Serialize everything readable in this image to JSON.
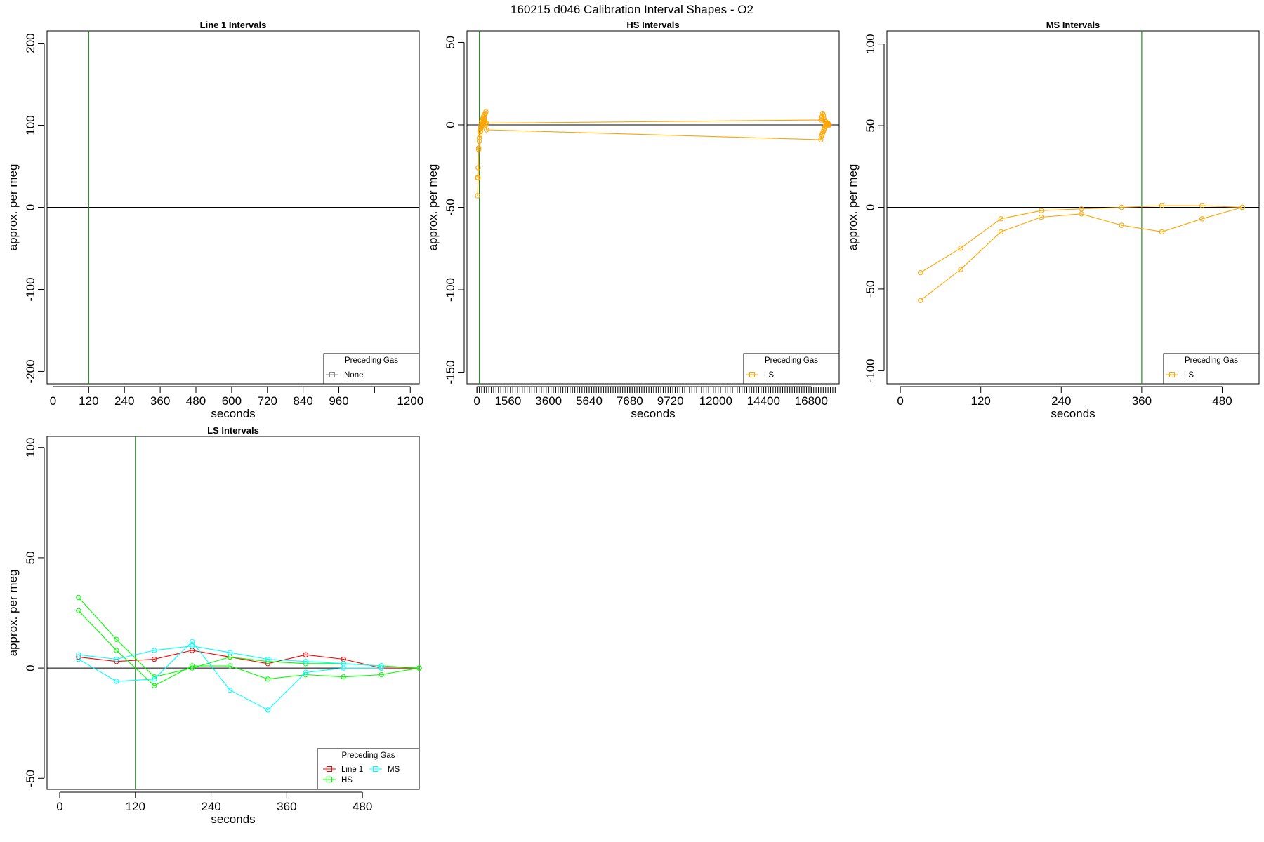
{
  "figure": {
    "title": "160215   d046   Calibration Interval Shapes - O2"
  },
  "colors": {
    "ref_line": "#228B22",
    "zero_line": "#000000"
  },
  "chart_data": [
    {
      "type": "line",
      "title": "Line 1 Intervals",
      "xlabel": "seconds",
      "ylabel": "approx. per meg",
      "xlim": [
        -20,
        1230
      ],
      "ylim": [
        -215,
        215
      ],
      "xticks": [
        0,
        120,
        240,
        360,
        480,
        600,
        720,
        840,
        960,
        1200
      ],
      "xtick_labels": [
        "0",
        "120",
        "240",
        "360",
        "480",
        "600",
        "720",
        "840",
        "960",
        "1200"
      ],
      "yticks": [
        -200,
        -100,
        0,
        100,
        200
      ],
      "ytick_labels": [
        "-200",
        "-100",
        "0",
        "100",
        "200"
      ],
      "extra_xticks": [
        1080
      ],
      "ref_vline": 120,
      "zero_hline": 0,
      "legend": {
        "title": "Preceding Gas",
        "position": "bottom-right",
        "entries": [
          {
            "label": "None",
            "color": "#888888"
          }
        ]
      },
      "series": []
    },
    {
      "type": "line",
      "title": "HS Intervals",
      "xlabel": "seconds",
      "ylabel": "approx. per meg",
      "xlim": [
        -500,
        18200
      ],
      "ylim": [
        -157,
        57
      ],
      "xticks": [
        0,
        1560,
        3600,
        5640,
        7680,
        9720,
        12000,
        14400,
        16800
      ],
      "xtick_labels": [
        "0",
        "1560",
        "3600",
        "5640",
        "7680",
        "9720",
        "12000",
        "14400",
        "16800"
      ],
      "yticks": [
        -150,
        -100,
        -50,
        0,
        50
      ],
      "ytick_labels": [
        "-150",
        "-100",
        "-50",
        "0",
        "50"
      ],
      "minor_xtick_step": 120,
      "minor_xtick_range": [
        0,
        18000
      ],
      "ref_vline": 120,
      "zero_hline": 0,
      "legend": {
        "title": "Preceding Gas",
        "position": "bottom-right",
        "entries": [
          {
            "label": "LS",
            "color": "#FFA500"
          }
        ]
      },
      "series": [
        {
          "color": "#FFA500",
          "x": [
            30,
            60,
            90,
            120,
            150,
            180,
            210,
            240,
            270,
            300,
            330,
            360,
            390,
            420,
            450,
            480,
            17280,
            17310,
            17340,
            17370,
            17400,
            17430,
            17460,
            17490,
            17520,
            17550,
            17580,
            17610,
            17640,
            17670,
            17700
          ],
          "y": [
            -43,
            -32,
            -14,
            -8,
            -4,
            -2,
            0,
            2,
            3,
            4,
            5,
            6,
            6,
            7,
            8,
            1,
            3,
            4,
            5,
            7,
            6,
            4,
            3,
            2,
            2,
            1,
            1,
            1,
            1,
            0,
            0
          ]
        },
        {
          "color": "#FFA500",
          "x": [
            30,
            60,
            90,
            120,
            150,
            180,
            210,
            240,
            270,
            300,
            330,
            360,
            390,
            420,
            450,
            480,
            17280,
            17310,
            17340,
            17370,
            17400,
            17430,
            17460,
            17490,
            17520,
            17550,
            17580,
            17610,
            17640,
            17670,
            17700
          ],
          "y": [
            -32,
            -26,
            -15,
            -10,
            -6,
            -4,
            -2,
            -1,
            0,
            1,
            2,
            3,
            2,
            1,
            0,
            -3,
            -9,
            -7,
            -6,
            -5,
            -4,
            -3,
            -2,
            -1,
            -1,
            0,
            0,
            1,
            0,
            0,
            0
          ]
        }
      ]
    },
    {
      "type": "line",
      "title": "MS Intervals",
      "xlabel": "seconds",
      "ylabel": "approx. per meg",
      "xlim": [
        -20,
        535
      ],
      "ylim": [
        -108,
        108
      ],
      "xticks": [
        0,
        120,
        240,
        360,
        480
      ],
      "xtick_labels": [
        "0",
        "120",
        "240",
        "360",
        "480"
      ],
      "yticks": [
        -100,
        -50,
        0,
        50,
        100
      ],
      "ytick_labels": [
        "-100",
        "-50",
        "0",
        "50",
        "100"
      ],
      "ref_vline": 360,
      "zero_hline": 0,
      "legend": {
        "title": "Preceding Gas",
        "position": "bottom-right",
        "entries": [
          {
            "label": "LS",
            "color": "#FFA500"
          }
        ]
      },
      "series": [
        {
          "color": "#FFA500",
          "x": [
            30,
            90,
            150,
            210,
            270,
            330,
            390,
            450,
            510
          ],
          "y": [
            -40,
            -25,
            -7,
            -2,
            -1,
            0,
            1,
            1,
            0
          ]
        },
        {
          "color": "#FFA500",
          "x": [
            30,
            90,
            150,
            210,
            270,
            330,
            390,
            450,
            510
          ],
          "y": [
            -57,
            -38,
            -15,
            -6,
            -4,
            -11,
            -15,
            -7,
            0
          ]
        }
      ]
    },
    {
      "type": "line",
      "title": "LS Intervals",
      "xlabel": "seconds",
      "ylabel": "approx. per meg",
      "xlim": [
        -20,
        570
      ],
      "ylim": [
        -55,
        105
      ],
      "xticks": [
        0,
        120,
        240,
        360,
        480
      ],
      "xtick_labels": [
        "0",
        "120",
        "240",
        "360",
        "480"
      ],
      "yticks": [
        -50,
        0,
        50,
        100
      ],
      "ytick_labels": [
        "-50",
        "0",
        "50",
        "100"
      ],
      "ref_vline": 120,
      "zero_hline": 0,
      "legend": {
        "title": "Preceding Gas",
        "position": "bottom-right",
        "entries": [
          {
            "label": "Line 1",
            "color": "#FF0000"
          },
          {
            "label": "MS",
            "color": "#00FFFF"
          },
          {
            "label": "HS",
            "color": "#00FF00"
          }
        ]
      },
      "series": [
        {
          "name": "Line 1",
          "color": "#FF0000",
          "x": [
            30,
            90,
            150,
            210,
            270,
            330,
            390,
            450,
            510,
            570
          ],
          "y": [
            5,
            3,
            4,
            8,
            5,
            2,
            6,
            4,
            0,
            0
          ]
        },
        {
          "name": "HS",
          "color": "#00FF00",
          "x": [
            30,
            90,
            150,
            210,
            270,
            330,
            390,
            450,
            510,
            570
          ],
          "y": [
            32,
            13,
            -4,
            0,
            5,
            3,
            2,
            2,
            1,
            0
          ]
        },
        {
          "name": "HS",
          "color": "#00FF00",
          "x": [
            30,
            90,
            150,
            210,
            270,
            330,
            390,
            450,
            510,
            570
          ],
          "y": [
            26,
            8,
            -8,
            1,
            1,
            -5,
            -3,
            -4,
            -3,
            0
          ]
        },
        {
          "name": "MS",
          "color": "#00FFFF",
          "x": [
            30,
            90,
            150,
            210,
            270,
            330,
            390,
            450,
            510
          ],
          "y": [
            6,
            4,
            8,
            10,
            7,
            4,
            3,
            2,
            1
          ]
        },
        {
          "name": "MS",
          "color": "#00FFFF",
          "x": [
            30,
            90,
            150,
            210,
            270,
            330,
            390,
            450,
            510
          ],
          "y": [
            4,
            -6,
            -5,
            12,
            -10,
            -19,
            -2,
            0,
            0
          ]
        }
      ]
    }
  ]
}
